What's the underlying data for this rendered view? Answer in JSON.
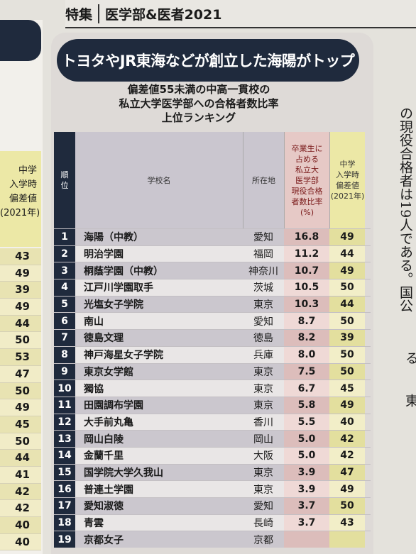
{
  "header": {
    "tag": "特集",
    "issue": "医学部&医者2021"
  },
  "banner": "トヨタやJR東海などが創立した海陽がトップ",
  "subtitle": [
    "偏差値55未満の中高一貫校の",
    "私立大学医学部への合格者数比率",
    "上位ランキング"
  ],
  "left_table": {
    "header": [
      "中学",
      "入学時",
      "偏差値",
      "(2021年)"
    ],
    "values": [
      "43",
      "49",
      "39",
      "49",
      "44",
      "50",
      "53",
      "47",
      "50",
      "49",
      "45",
      "50",
      "44",
      "41",
      "42",
      "42",
      "40",
      "40"
    ]
  },
  "table": {
    "headers": {
      "rank": [
        "順",
        "位"
      ],
      "name": "学校名",
      "location": "所在地",
      "ratio": [
        "卒業生に",
        "占める",
        "私立大",
        "医学部",
        "現役合格",
        "者数比率",
        "(%)"
      ],
      "deviation": [
        "中学",
        "入学時",
        "偏差値",
        "(2021年)"
      ]
    },
    "rows": [
      {
        "rank": "1",
        "name": "海陽（中教）",
        "location": "愛知",
        "ratio": "16.8",
        "deviation": "49"
      },
      {
        "rank": "2",
        "name": "明治学園",
        "location": "福岡",
        "ratio": "11.2",
        "deviation": "44"
      },
      {
        "rank": "3",
        "name": "桐蔭学園（中教）",
        "location": "神奈川",
        "ratio": "10.7",
        "deviation": "49"
      },
      {
        "rank": "4",
        "name": "江戸川学園取手",
        "location": "茨城",
        "ratio": "10.5",
        "deviation": "50"
      },
      {
        "rank": "5",
        "name": "光塩女子学院",
        "location": "東京",
        "ratio": "10.3",
        "deviation": "44"
      },
      {
        "rank": "6",
        "name": "南山",
        "location": "愛知",
        "ratio": "8.7",
        "deviation": "50"
      },
      {
        "rank": "7",
        "name": "徳島文理",
        "location": "徳島",
        "ratio": "8.2",
        "deviation": "39"
      },
      {
        "rank": "8",
        "name": "神戸海星女子学院",
        "location": "兵庫",
        "ratio": "8.0",
        "deviation": "50"
      },
      {
        "rank": "9",
        "name": "東京女学館",
        "location": "東京",
        "ratio": "7.5",
        "deviation": "50"
      },
      {
        "rank": "10",
        "name": "獨協",
        "location": "東京",
        "ratio": "6.7",
        "deviation": "45"
      },
      {
        "rank": "11",
        "name": "田園調布学園",
        "location": "東京",
        "ratio": "5.8",
        "deviation": "49"
      },
      {
        "rank": "12",
        "name": "大手前丸亀",
        "location": "香川",
        "ratio": "5.5",
        "deviation": "40"
      },
      {
        "rank": "13",
        "name": "岡山白陵",
        "location": "岡山",
        "ratio": "5.0",
        "deviation": "42"
      },
      {
        "rank": "14",
        "name": "金蘭千里",
        "location": "大阪",
        "ratio": "5.0",
        "deviation": "42"
      },
      {
        "rank": "15",
        "name": "国学院大学久我山",
        "location": "東京",
        "ratio": "3.9",
        "deviation": "47"
      },
      {
        "rank": "16",
        "name": "普連土学園",
        "location": "東京",
        "ratio": "3.9",
        "deviation": "49"
      },
      {
        "rank": "17",
        "name": "愛知淑徳",
        "location": "愛知",
        "ratio": "3.7",
        "deviation": "50"
      },
      {
        "rank": "18",
        "name": "青雲",
        "location": "長崎",
        "ratio": "3.7",
        "deviation": "43"
      },
      {
        "rank": "19",
        "name": "京都女子",
        "location": "京都",
        "ratio": "",
        "deviation": ""
      }
    ]
  },
  "right_text": [
    "の現役合格者は19人である。国公"
  ],
  "right_text2": [
    "る",
    "東"
  ]
}
